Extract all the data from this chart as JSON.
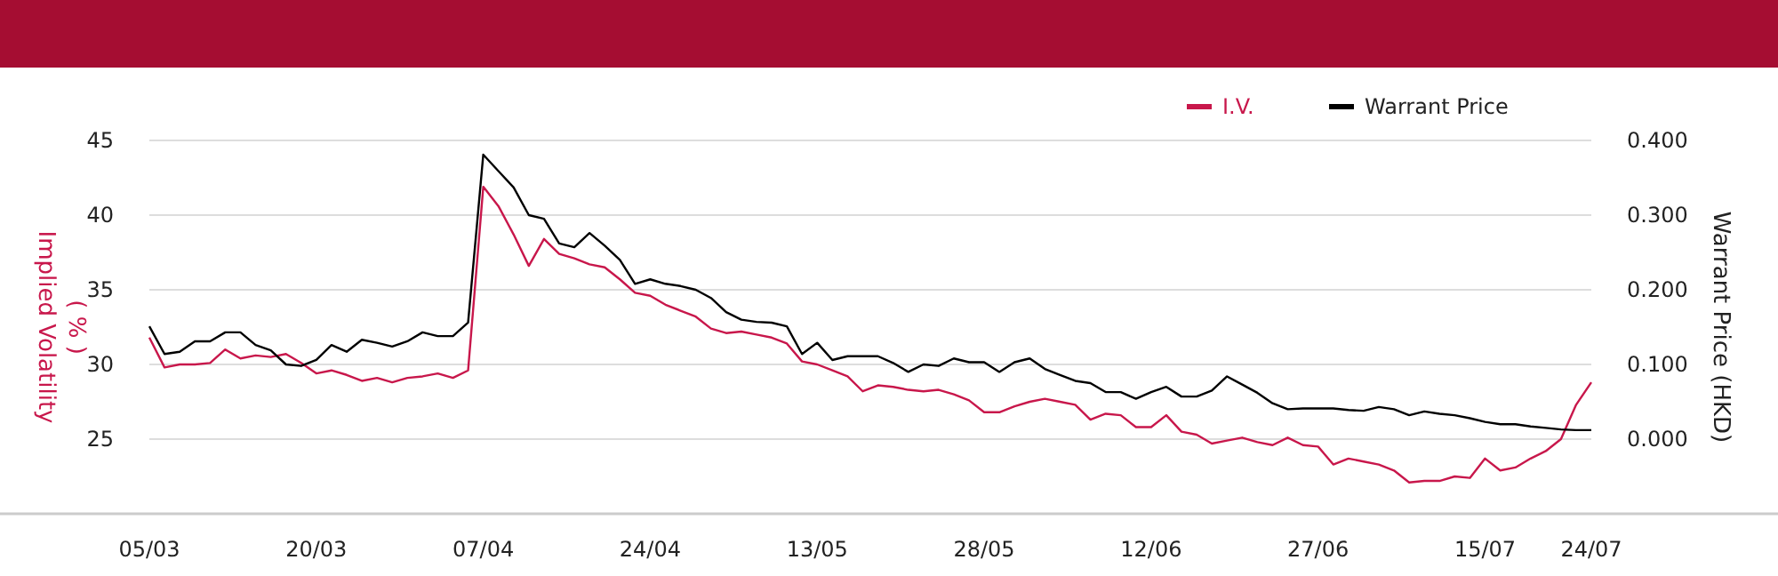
{
  "chart_data": {
    "type": "line",
    "categories": [
      "05/03",
      null,
      null,
      null,
      null,
      null,
      null,
      null,
      null,
      null,
      null,
      "20/03",
      null,
      null,
      null,
      null,
      null,
      null,
      null,
      null,
      null,
      null,
      "07/04",
      null,
      null,
      null,
      null,
      null,
      null,
      null,
      null,
      null,
      null,
      "24/04",
      null,
      null,
      null,
      null,
      null,
      null,
      null,
      null,
      null,
      null,
      "13/05",
      null,
      null,
      null,
      null,
      null,
      null,
      null,
      null,
      null,
      null,
      "28/05",
      null,
      null,
      null,
      null,
      null,
      null,
      null,
      null,
      null,
      null,
      "12/06",
      null,
      null,
      null,
      null,
      null,
      null,
      null,
      null,
      null,
      null,
      "27/06",
      null,
      null,
      null,
      null,
      null,
      null,
      null,
      null,
      null,
      null,
      "15/07",
      null,
      null,
      null,
      null,
      null,
      null,
      "24/07"
    ],
    "series": [
      {
        "name": "I.V.",
        "color": "#c8174b",
        "values": [
          31.8,
          29.8,
          30.0,
          30.0,
          30.1,
          31.0,
          30.4,
          30.6,
          30.5,
          30.7,
          30.1,
          29.4,
          29.6,
          29.3,
          28.9,
          29.1,
          28.8,
          29.1,
          29.2,
          29.4,
          29.1,
          29.6,
          41.9,
          40.6,
          38.7,
          36.6,
          38.4,
          37.4,
          37.1,
          36.7,
          36.5,
          35.7,
          34.8,
          34.6,
          34.0,
          33.6,
          33.2,
          32.4,
          32.1,
          32.2,
          32.0,
          31.8,
          31.4,
          30.2,
          30.0,
          29.6,
          29.2,
          28.2,
          28.6,
          28.5,
          28.3,
          28.2,
          28.3,
          28.0,
          27.6,
          26.8,
          26.8,
          27.2,
          27.5,
          27.7,
          27.5,
          27.3,
          26.3,
          26.7,
          26.6,
          25.8,
          25.8,
          26.6,
          25.5,
          25.3,
          24.7,
          24.9,
          25.1,
          24.8,
          24.6,
          25.1,
          24.6,
          24.5,
          23.3,
          23.7,
          23.5,
          23.3,
          22.9,
          22.1,
          22.2,
          22.2,
          22.5,
          22.4,
          23.7,
          22.9,
          23.1,
          23.7,
          24.2,
          25.0,
          27.3,
          28.8
        ]
      },
      {
        "name": "Warrant Price",
        "color": "#000000",
        "axis": "y2",
        "values": [
          0.151,
          0.114,
          0.117,
          0.131,
          0.131,
          0.143,
          0.143,
          0.126,
          0.119,
          0.1,
          0.098,
          0.106,
          0.126,
          0.117,
          0.133,
          0.129,
          0.124,
          0.131,
          0.143,
          0.138,
          0.138,
          0.156,
          0.381,
          0.359,
          0.337,
          0.3,
          0.295,
          0.262,
          0.257,
          0.276,
          0.259,
          0.24,
          0.208,
          0.214,
          0.208,
          0.205,
          0.2,
          0.189,
          0.17,
          0.16,
          0.157,
          0.156,
          0.151,
          0.114,
          0.129,
          0.106,
          0.111,
          0.111,
          0.111,
          0.102,
          0.09,
          0.1,
          0.098,
          0.108,
          0.103,
          0.103,
          0.09,
          0.103,
          0.108,
          0.094,
          0.086,
          0.078,
          0.075,
          0.063,
          0.063,
          0.054,
          0.063,
          0.07,
          0.057,
          0.057,
          0.065,
          0.084,
          0.073,
          0.062,
          0.048,
          0.04,
          0.041,
          0.041,
          0.041,
          0.039,
          0.038,
          0.043,
          0.04,
          0.032,
          0.037,
          0.034,
          0.032,
          0.028,
          0.023,
          0.02,
          0.02,
          0.017,
          0.015,
          0.013,
          0.012,
          0.012
        ]
      }
    ],
    "ylabel": "Implied Volatility\n( % )",
    "y2label": "Warrant Price (HKD)",
    "ylim": [
      20,
      45
    ],
    "yticks": [
      25,
      30,
      35,
      40,
      45
    ],
    "y2lim": [
      -0.1,
      0.4
    ],
    "y2ticks": [
      {
        "value": 0,
        "label": "0.000"
      },
      {
        "value": 0.1,
        "label": "0.100"
      },
      {
        "value": 0.2,
        "label": "0.200"
      },
      {
        "value": 0.3,
        "label": "0.300"
      },
      {
        "value": 0.4,
        "label": "0.400"
      }
    ],
    "grid": "y",
    "legend": "top right",
    "line_style": "solid",
    "marker": "none"
  }
}
